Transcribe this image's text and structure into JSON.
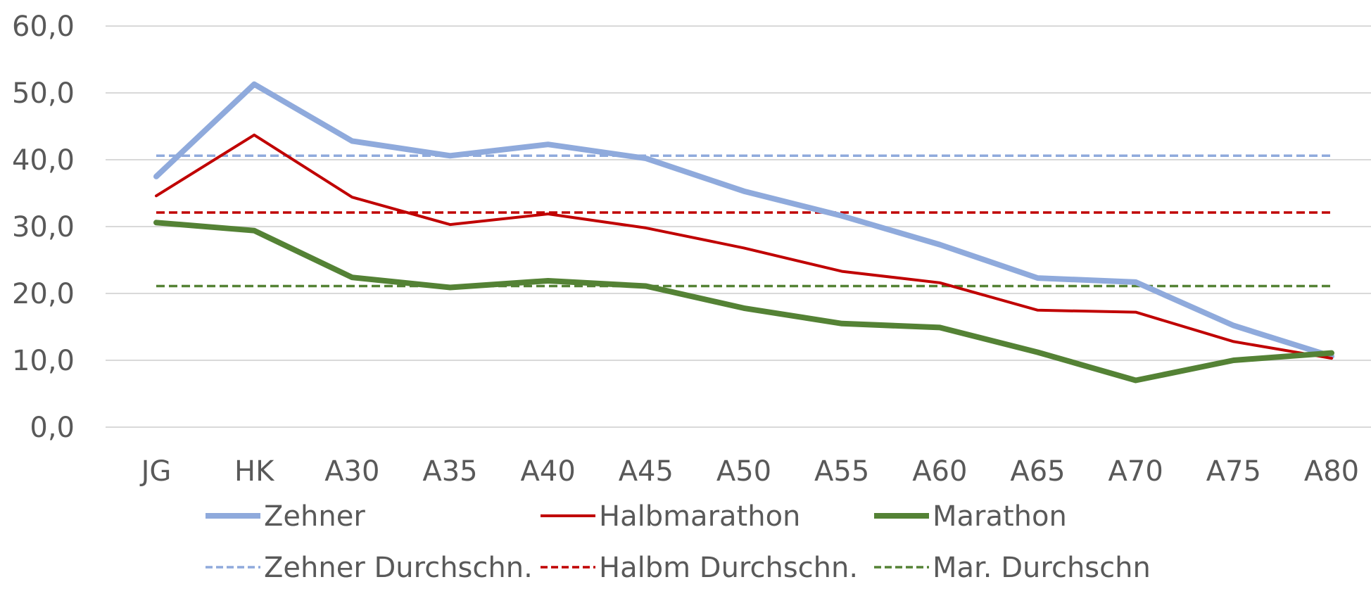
{
  "chart_data": {
    "type": "line",
    "categories": [
      "JG",
      "HK",
      "A30",
      "A35",
      "A40",
      "A45",
      "A50",
      "A55",
      "A60",
      "A65",
      "A70",
      "A75",
      "A80"
    ],
    "ylim": [
      0,
      60
    ],
    "yticks": [
      "0,0",
      "10,0",
      "20,0",
      "30,0",
      "40,0",
      "50,0",
      "60,0"
    ],
    "grid": true,
    "legend_position": "bottom",
    "series": [
      {
        "name": "Zehner",
        "color": "#8faadc",
        "style": "solid",
        "weight": "thick",
        "values": [
          37.5,
          51.3,
          42.8,
          40.6,
          42.3,
          40.2,
          35.3,
          31.6,
          27.3,
          22.3,
          21.7,
          15.2,
          10.6
        ]
      },
      {
        "name": "Halbmarathon",
        "color": "#c00000",
        "style": "solid",
        "weight": "normal",
        "values": [
          34.6,
          43.7,
          34.4,
          30.3,
          31.9,
          29.8,
          26.8,
          23.3,
          21.6,
          17.5,
          17.2,
          12.8,
          10.3
        ]
      },
      {
        "name": "Marathon",
        "color": "#548235",
        "style": "solid",
        "weight": "thick",
        "values": [
          30.6,
          29.4,
          22.4,
          20.9,
          21.9,
          21.1,
          17.8,
          15.5,
          14.9,
          11.2,
          7.0,
          10.0,
          11.1
        ]
      },
      {
        "name": "Zehner Durchschn.",
        "color": "#8faadc",
        "style": "dashed",
        "weight": "normal",
        "values": [
          40.6,
          40.6,
          40.6,
          40.6,
          40.6,
          40.6,
          40.6,
          40.6,
          40.6,
          40.6,
          40.6,
          40.6,
          40.6
        ]
      },
      {
        "name": "Halbm Durchschn.",
        "color": "#c00000",
        "style": "dashed",
        "weight": "normal",
        "values": [
          32.1,
          32.1,
          32.1,
          32.1,
          32.1,
          32.1,
          32.1,
          32.1,
          32.1,
          32.1,
          32.1,
          32.1,
          32.1
        ]
      },
      {
        "name": "Mar. Durchschn",
        "color": "#548235",
        "style": "dashed",
        "weight": "normal",
        "values": [
          21.1,
          21.1,
          21.1,
          21.1,
          21.1,
          21.1,
          21.1,
          21.1,
          21.1,
          21.1,
          21.1,
          21.1,
          21.1
        ]
      }
    ]
  }
}
